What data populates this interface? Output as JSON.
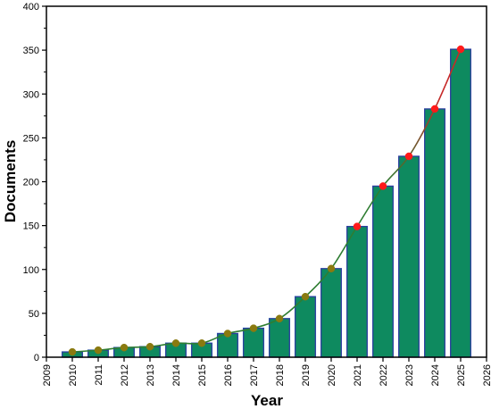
{
  "chart_data": {
    "type": "bar",
    "title": "",
    "xlabel": "Year",
    "ylabel": "Documents",
    "xlim": [
      2009,
      2026
    ],
    "ylim": [
      0,
      400
    ],
    "x_ticks": [
      "2009",
      "2010",
      "2011",
      "2012",
      "2013",
      "2014",
      "2015",
      "2016",
      "2017",
      "2018",
      "2019",
      "2020",
      "2021",
      "2022",
      "2023",
      "2024",
      "2025",
      "2026"
    ],
    "y_ticks": [
      "0",
      "50",
      "100",
      "150",
      "200",
      "250",
      "300",
      "350",
      "400"
    ],
    "categories": [
      "2010",
      "2011",
      "2012",
      "2013",
      "2014",
      "2015",
      "2016",
      "2017",
      "2018",
      "2019",
      "2020",
      "2021",
      "2022",
      "2023",
      "2024",
      "2025"
    ],
    "values": [
      6,
      8,
      11,
      12,
      16,
      16,
      27,
      33,
      44,
      69,
      101,
      149,
      195,
      229,
      283,
      351
    ],
    "overlay_line": {
      "type": "smooth-line-with-markers",
      "values": [
        6,
        8,
        11,
        12,
        16,
        16,
        27,
        33,
        44,
        69,
        101,
        149,
        195,
        229,
        283,
        351
      ]
    },
    "grid": false,
    "legend": "none",
    "colors": {
      "bar_fill": "#0e8a5f",
      "bar_outline": "#2b3c9e",
      "bar_glow_low": "#a9f2ee",
      "line_low": "#2e7d32",
      "line_high": "#c62828",
      "marker_low": "#8a7a10",
      "marker_high": "#ff1a1a"
    }
  }
}
